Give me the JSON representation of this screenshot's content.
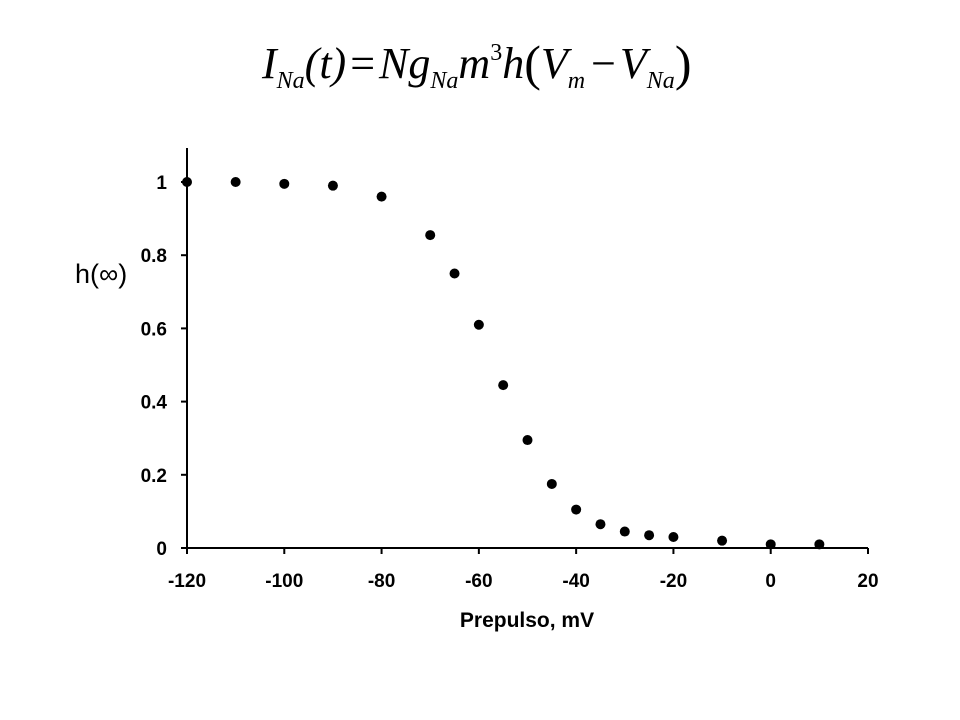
{
  "equation": {
    "lhs_symbol": "I",
    "lhs_sub": "Na",
    "lhs_arg": "(t)",
    "equals": "=",
    "N": "N",
    "g": "g",
    "g_sub": "Na",
    "m": "m",
    "m_exp": "3",
    "h": "h",
    "Vm": "V",
    "Vm_sub": "m",
    "minus": "−",
    "VNa": "V",
    "VNa_sub": "Na"
  },
  "chart_data": {
    "type": "scatter",
    "xlabel": "Prepulso, mV",
    "ylabel": "h(∞)",
    "xlim": [
      -120,
      20
    ],
    "ylim": [
      0,
      1
    ],
    "x_ticks": [
      -120,
      -100,
      -80,
      -60,
      -40,
      -20,
      0,
      20
    ],
    "y_ticks": [
      0,
      0.2,
      0.4,
      0.6,
      0.8,
      1
    ],
    "x_tick_labels": [
      "-120",
      "-100",
      "-80",
      "-60",
      "-40",
      "-20",
      "0",
      "20"
    ],
    "y_tick_labels": [
      "0",
      "0.2",
      "0.4",
      "0.6",
      "0.8",
      "1"
    ],
    "grid": false,
    "marker_color": "#000000",
    "series": [
      {
        "x": [
          -120,
          -110,
          -100,
          -90,
          -80,
          -70,
          -65,
          -60,
          -55,
          -50,
          -45,
          -40,
          -35,
          -30,
          -25,
          -20,
          -10,
          0,
          10
        ],
        "y": [
          1.0,
          1.0,
          0.995,
          0.99,
          0.96,
          0.855,
          0.75,
          0.61,
          0.445,
          0.295,
          0.175,
          0.105,
          0.065,
          0.045,
          0.035,
          0.03,
          0.02,
          0.01,
          0.01
        ]
      }
    ]
  }
}
